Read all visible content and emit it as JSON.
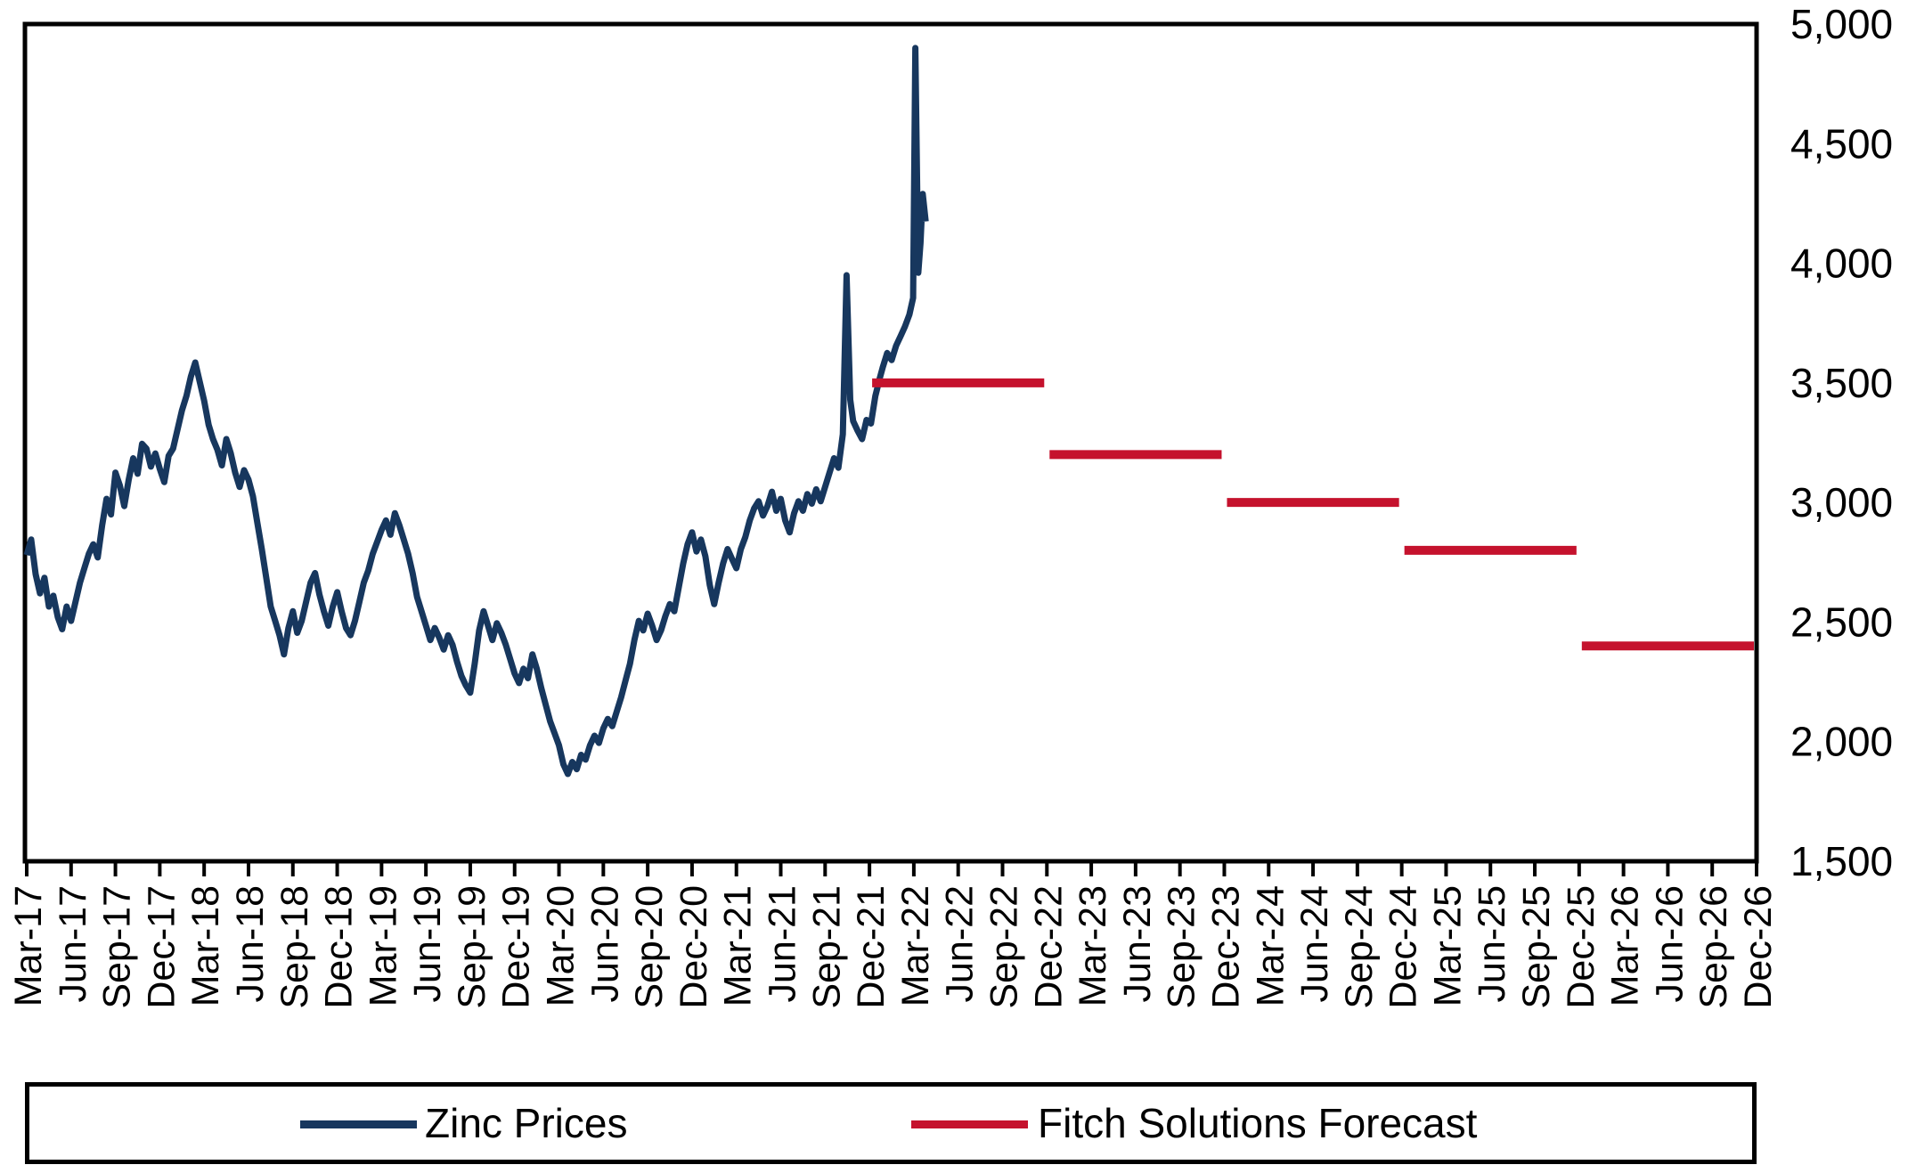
{
  "chart_data": {
    "type": "line",
    "title": "",
    "y_axis": {
      "side": "right",
      "min": 1500,
      "max": 5000,
      "step": 500,
      "tick_labels": [
        "5,000",
        "4,500",
        "4,000",
        "3,500",
        "3,000",
        "2,500",
        "2,000",
        "1,500"
      ],
      "tick_values": [
        5000,
        4500,
        4000,
        3500,
        3000,
        2500,
        2000,
        1500
      ]
    },
    "x_axis": {
      "unit": "quarter",
      "months_span": 117,
      "tick_labels": [
        "Mar-17",
        "Jun-17",
        "Sep-17",
        "Dec-17",
        "Mar-18",
        "Jun-18",
        "Sep-18",
        "Dec-18",
        "Mar-19",
        "Jun-19",
        "Sep-19",
        "Dec-19",
        "Mar-20",
        "Jun-20",
        "Sep-20",
        "Dec-20",
        "Mar-21",
        "Jun-21",
        "Sep-21",
        "Dec-21",
        "Mar-22",
        "Jun-22",
        "Sep-22",
        "Dec-22",
        "Mar-23",
        "Jun-23",
        "Sep-23",
        "Dec-23",
        "Mar-24",
        "Jun-24",
        "Sep-24",
        "Dec-24",
        "Mar-25",
        "Jun-25",
        "Sep-25",
        "Dec-25",
        "Mar-26",
        "Jun-26",
        "Sep-26",
        "Dec-26"
      ]
    },
    "series": [
      {
        "name": "Zinc Prices",
        "color": "#17375e",
        "style": "line",
        "points": [
          [
            0,
            2780
          ],
          [
            0.3,
            2845
          ],
          [
            0.6,
            2700
          ],
          [
            0.9,
            2620
          ],
          [
            1.2,
            2685
          ],
          [
            1.5,
            2565
          ],
          [
            1.8,
            2610
          ],
          [
            2.1,
            2520
          ],
          [
            2.4,
            2470
          ],
          [
            2.7,
            2565
          ],
          [
            3,
            2505
          ],
          [
            3.3,
            2585
          ],
          [
            3.6,
            2665
          ],
          [
            3.9,
            2725
          ],
          [
            4.2,
            2785
          ],
          [
            4.5,
            2825
          ],
          [
            4.8,
            2770
          ],
          [
            5.1,
            2905
          ],
          [
            5.4,
            3015
          ],
          [
            5.7,
            2950
          ],
          [
            6,
            3125
          ],
          [
            6.3,
            3070
          ],
          [
            6.6,
            2985
          ],
          [
            6.9,
            3095
          ],
          [
            7.2,
            3185
          ],
          [
            7.5,
            3120
          ],
          [
            7.8,
            3245
          ],
          [
            8.1,
            3225
          ],
          [
            8.4,
            3150
          ],
          [
            8.7,
            3205
          ],
          [
            9,
            3140
          ],
          [
            9.3,
            3085
          ],
          [
            9.6,
            3195
          ],
          [
            9.9,
            3225
          ],
          [
            10.2,
            3305
          ],
          [
            10.5,
            3385
          ],
          [
            10.8,
            3445
          ],
          [
            11.1,
            3525
          ],
          [
            11.4,
            3585
          ],
          [
            11.7,
            3505
          ],
          [
            12,
            3425
          ],
          [
            12.3,
            3325
          ],
          [
            12.6,
            3265
          ],
          [
            12.9,
            3220
          ],
          [
            13.2,
            3155
          ],
          [
            13.5,
            3265
          ],
          [
            13.8,
            3205
          ],
          [
            14.1,
            3125
          ],
          [
            14.4,
            3065
          ],
          [
            14.7,
            3135
          ],
          [
            15,
            3095
          ],
          [
            15.3,
            3025
          ],
          [
            15.6,
            2915
          ],
          [
            15.9,
            2805
          ],
          [
            16.2,
            2685
          ],
          [
            16.5,
            2565
          ],
          [
            16.8,
            2505
          ],
          [
            17.1,
            2445
          ],
          [
            17.4,
            2365
          ],
          [
            17.7,
            2475
          ],
          [
            18,
            2545
          ],
          [
            18.3,
            2455
          ],
          [
            18.6,
            2505
          ],
          [
            18.9,
            2585
          ],
          [
            19.2,
            2665
          ],
          [
            19.5,
            2705
          ],
          [
            19.8,
            2615
          ],
          [
            20.1,
            2545
          ],
          [
            20.4,
            2485
          ],
          [
            20.7,
            2565
          ],
          [
            21,
            2625
          ],
          [
            21.3,
            2545
          ],
          [
            21.6,
            2475
          ],
          [
            21.9,
            2445
          ],
          [
            22.2,
            2505
          ],
          [
            22.5,
            2585
          ],
          [
            22.8,
            2665
          ],
          [
            23.1,
            2715
          ],
          [
            23.4,
            2785
          ],
          [
            23.7,
            2835
          ],
          [
            24,
            2885
          ],
          [
            24.3,
            2925
          ],
          [
            24.6,
            2865
          ],
          [
            24.9,
            2955
          ],
          [
            25.2,
            2905
          ],
          [
            25.5,
            2845
          ],
          [
            25.8,
            2785
          ],
          [
            26.1,
            2705
          ],
          [
            26.4,
            2605
          ],
          [
            26.7,
            2545
          ],
          [
            27,
            2485
          ],
          [
            27.3,
            2425
          ],
          [
            27.6,
            2475
          ],
          [
            27.9,
            2435
          ],
          [
            28.2,
            2385
          ],
          [
            28.5,
            2445
          ],
          [
            28.8,
            2405
          ],
          [
            29.1,
            2335
          ],
          [
            29.4,
            2275
          ],
          [
            29.7,
            2235
          ],
          [
            30,
            2205
          ],
          [
            30.3,
            2325
          ],
          [
            30.6,
            2465
          ],
          [
            30.9,
            2545
          ],
          [
            31.2,
            2485
          ],
          [
            31.5,
            2425
          ],
          [
            31.8,
            2495
          ],
          [
            32.1,
            2455
          ],
          [
            32.4,
            2405
          ],
          [
            32.7,
            2345
          ],
          [
            33,
            2285
          ],
          [
            33.3,
            2245
          ],
          [
            33.6,
            2305
          ],
          [
            33.9,
            2265
          ],
          [
            34.2,
            2365
          ],
          [
            34.5,
            2305
          ],
          [
            34.8,
            2225
          ],
          [
            35.1,
            2155
          ],
          [
            35.4,
            2085
          ],
          [
            35.7,
            2035
          ],
          [
            36,
            1985
          ],
          [
            36.3,
            1905
          ],
          [
            36.6,
            1865
          ],
          [
            36.9,
            1915
          ],
          [
            37.2,
            1885
          ],
          [
            37.5,
            1945
          ],
          [
            37.8,
            1925
          ],
          [
            38.1,
            1985
          ],
          [
            38.4,
            2025
          ],
          [
            38.7,
            1995
          ],
          [
            39,
            2055
          ],
          [
            39.3,
            2095
          ],
          [
            39.6,
            2065
          ],
          [
            39.9,
            2125
          ],
          [
            40.2,
            2185
          ],
          [
            40.5,
            2255
          ],
          [
            40.8,
            2325
          ],
          [
            41.1,
            2425
          ],
          [
            41.4,
            2505
          ],
          [
            41.7,
            2465
          ],
          [
            42,
            2535
          ],
          [
            42.3,
            2485
          ],
          [
            42.6,
            2425
          ],
          [
            42.9,
            2465
          ],
          [
            43.2,
            2525
          ],
          [
            43.5,
            2575
          ],
          [
            43.8,
            2545
          ],
          [
            44.1,
            2645
          ],
          [
            44.4,
            2745
          ],
          [
            44.7,
            2825
          ],
          [
            45,
            2875
          ],
          [
            45.3,
            2795
          ],
          [
            45.6,
            2845
          ],
          [
            45.9,
            2775
          ],
          [
            46.2,
            2655
          ],
          [
            46.5,
            2575
          ],
          [
            46.8,
            2665
          ],
          [
            47.1,
            2745
          ],
          [
            47.4,
            2805
          ],
          [
            47.7,
            2765
          ],
          [
            48,
            2725
          ],
          [
            48.3,
            2805
          ],
          [
            48.6,
            2855
          ],
          [
            48.9,
            2925
          ],
          [
            49.2,
            2975
          ],
          [
            49.5,
            3005
          ],
          [
            49.8,
            2945
          ],
          [
            50.1,
            2985
          ],
          [
            50.4,
            3045
          ],
          [
            50.7,
            2965
          ],
          [
            51,
            3015
          ],
          [
            51.3,
            2925
          ],
          [
            51.6,
            2875
          ],
          [
            51.9,
            2955
          ],
          [
            52.2,
            3005
          ],
          [
            52.5,
            2965
          ],
          [
            52.8,
            3035
          ],
          [
            53.1,
            2995
          ],
          [
            53.4,
            3055
          ],
          [
            53.7,
            3005
          ],
          [
            54,
            3065
          ],
          [
            54.3,
            3125
          ],
          [
            54.6,
            3185
          ],
          [
            54.9,
            3145
          ],
          [
            55.2,
            3285
          ],
          [
            55.45,
            3950
          ],
          [
            55.7,
            3430
          ],
          [
            55.9,
            3340
          ],
          [
            56.2,
            3300
          ],
          [
            56.5,
            3265
          ],
          [
            56.8,
            3345
          ],
          [
            57.1,
            3330
          ],
          [
            57.4,
            3445
          ],
          [
            57.7,
            3520
          ],
          [
            57.9,
            3565
          ],
          [
            58.2,
            3625
          ],
          [
            58.5,
            3595
          ],
          [
            58.8,
            3655
          ],
          [
            59.1,
            3695
          ],
          [
            59.4,
            3735
          ],
          [
            59.7,
            3785
          ],
          [
            59.95,
            3855
          ],
          [
            60.1,
            4900
          ],
          [
            60.3,
            3960
          ],
          [
            60.45,
            4085
          ],
          [
            60.6,
            4290
          ],
          [
            60.8,
            4175
          ]
        ]
      },
      {
        "name": "Fitch Solutions Forecast",
        "color": "#c5122d",
        "style": "step-segments",
        "segments": [
          {
            "year": "2022",
            "t_start": 57,
            "t_end": 69,
            "value": 3500
          },
          {
            "year": "2023",
            "t_start": 69,
            "t_end": 81,
            "value": 3200
          },
          {
            "year": "2024",
            "t_start": 81,
            "t_end": 93,
            "value": 3000
          },
          {
            "year": "2025",
            "t_start": 93,
            "t_end": 105,
            "value": 2800
          },
          {
            "year": "2026",
            "t_start": 105,
            "t_end": 117,
            "value": 2400
          }
        ]
      }
    ],
    "legend": {
      "position": "bottom",
      "border": true
    },
    "colors": {
      "axis": "#000000",
      "background": "#ffffff"
    }
  },
  "legend": {
    "zinc_label": "Zinc Prices",
    "forecast_label": "Fitch Solutions Forecast"
  }
}
